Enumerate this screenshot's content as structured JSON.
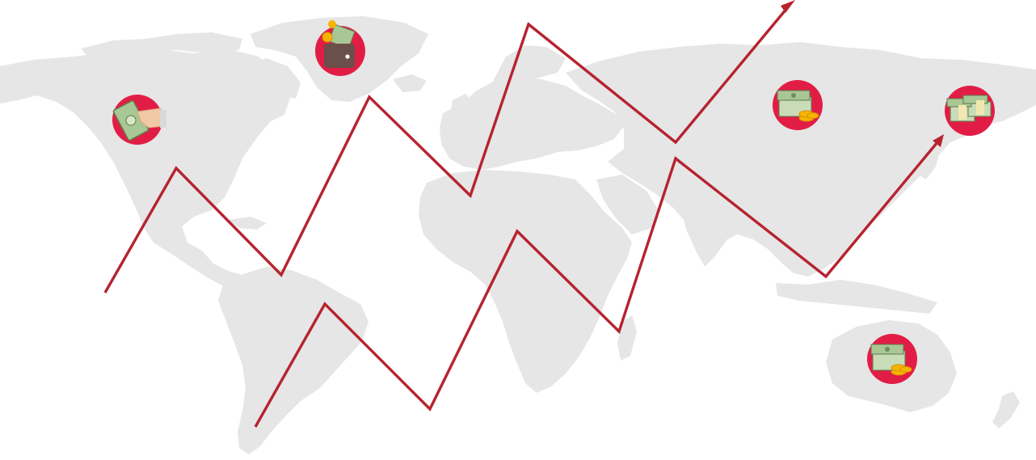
{
  "map": {
    "projection": "world",
    "land_color": "#e6e6e6",
    "background_color": "#ffffff"
  },
  "trend": {
    "color": "#b6232f",
    "arrows": 2
  },
  "badges": [
    {
      "region": "north-america",
      "icon": "hand-holding-cash-icon"
    },
    {
      "region": "greenland",
      "icon": "wallet-with-cash-and-coin-icon"
    },
    {
      "region": "russia",
      "icon": "cash-stack-with-coins-icon"
    },
    {
      "region": "east-asia",
      "icon": "large-cash-stacks-icon"
    },
    {
      "region": "australia",
      "icon": "cash-stack-with-coins-icon"
    }
  ],
  "badge_color": "#e21d45"
}
